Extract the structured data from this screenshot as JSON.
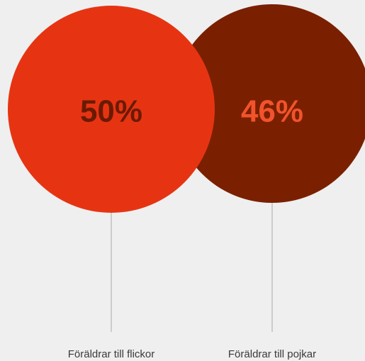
{
  "chart_data": {
    "type": "bubble",
    "categories": [
      "Föräldrar till flickor",
      "Föräldrar till pojkar"
    ],
    "values": [
      50,
      46
    ],
    "value_labels": [
      "50%",
      "46%"
    ],
    "colors": [
      "#e63413",
      "#7a2000"
    ],
    "label_colors": [
      "#6b1a02",
      "#f2532c"
    ]
  }
}
